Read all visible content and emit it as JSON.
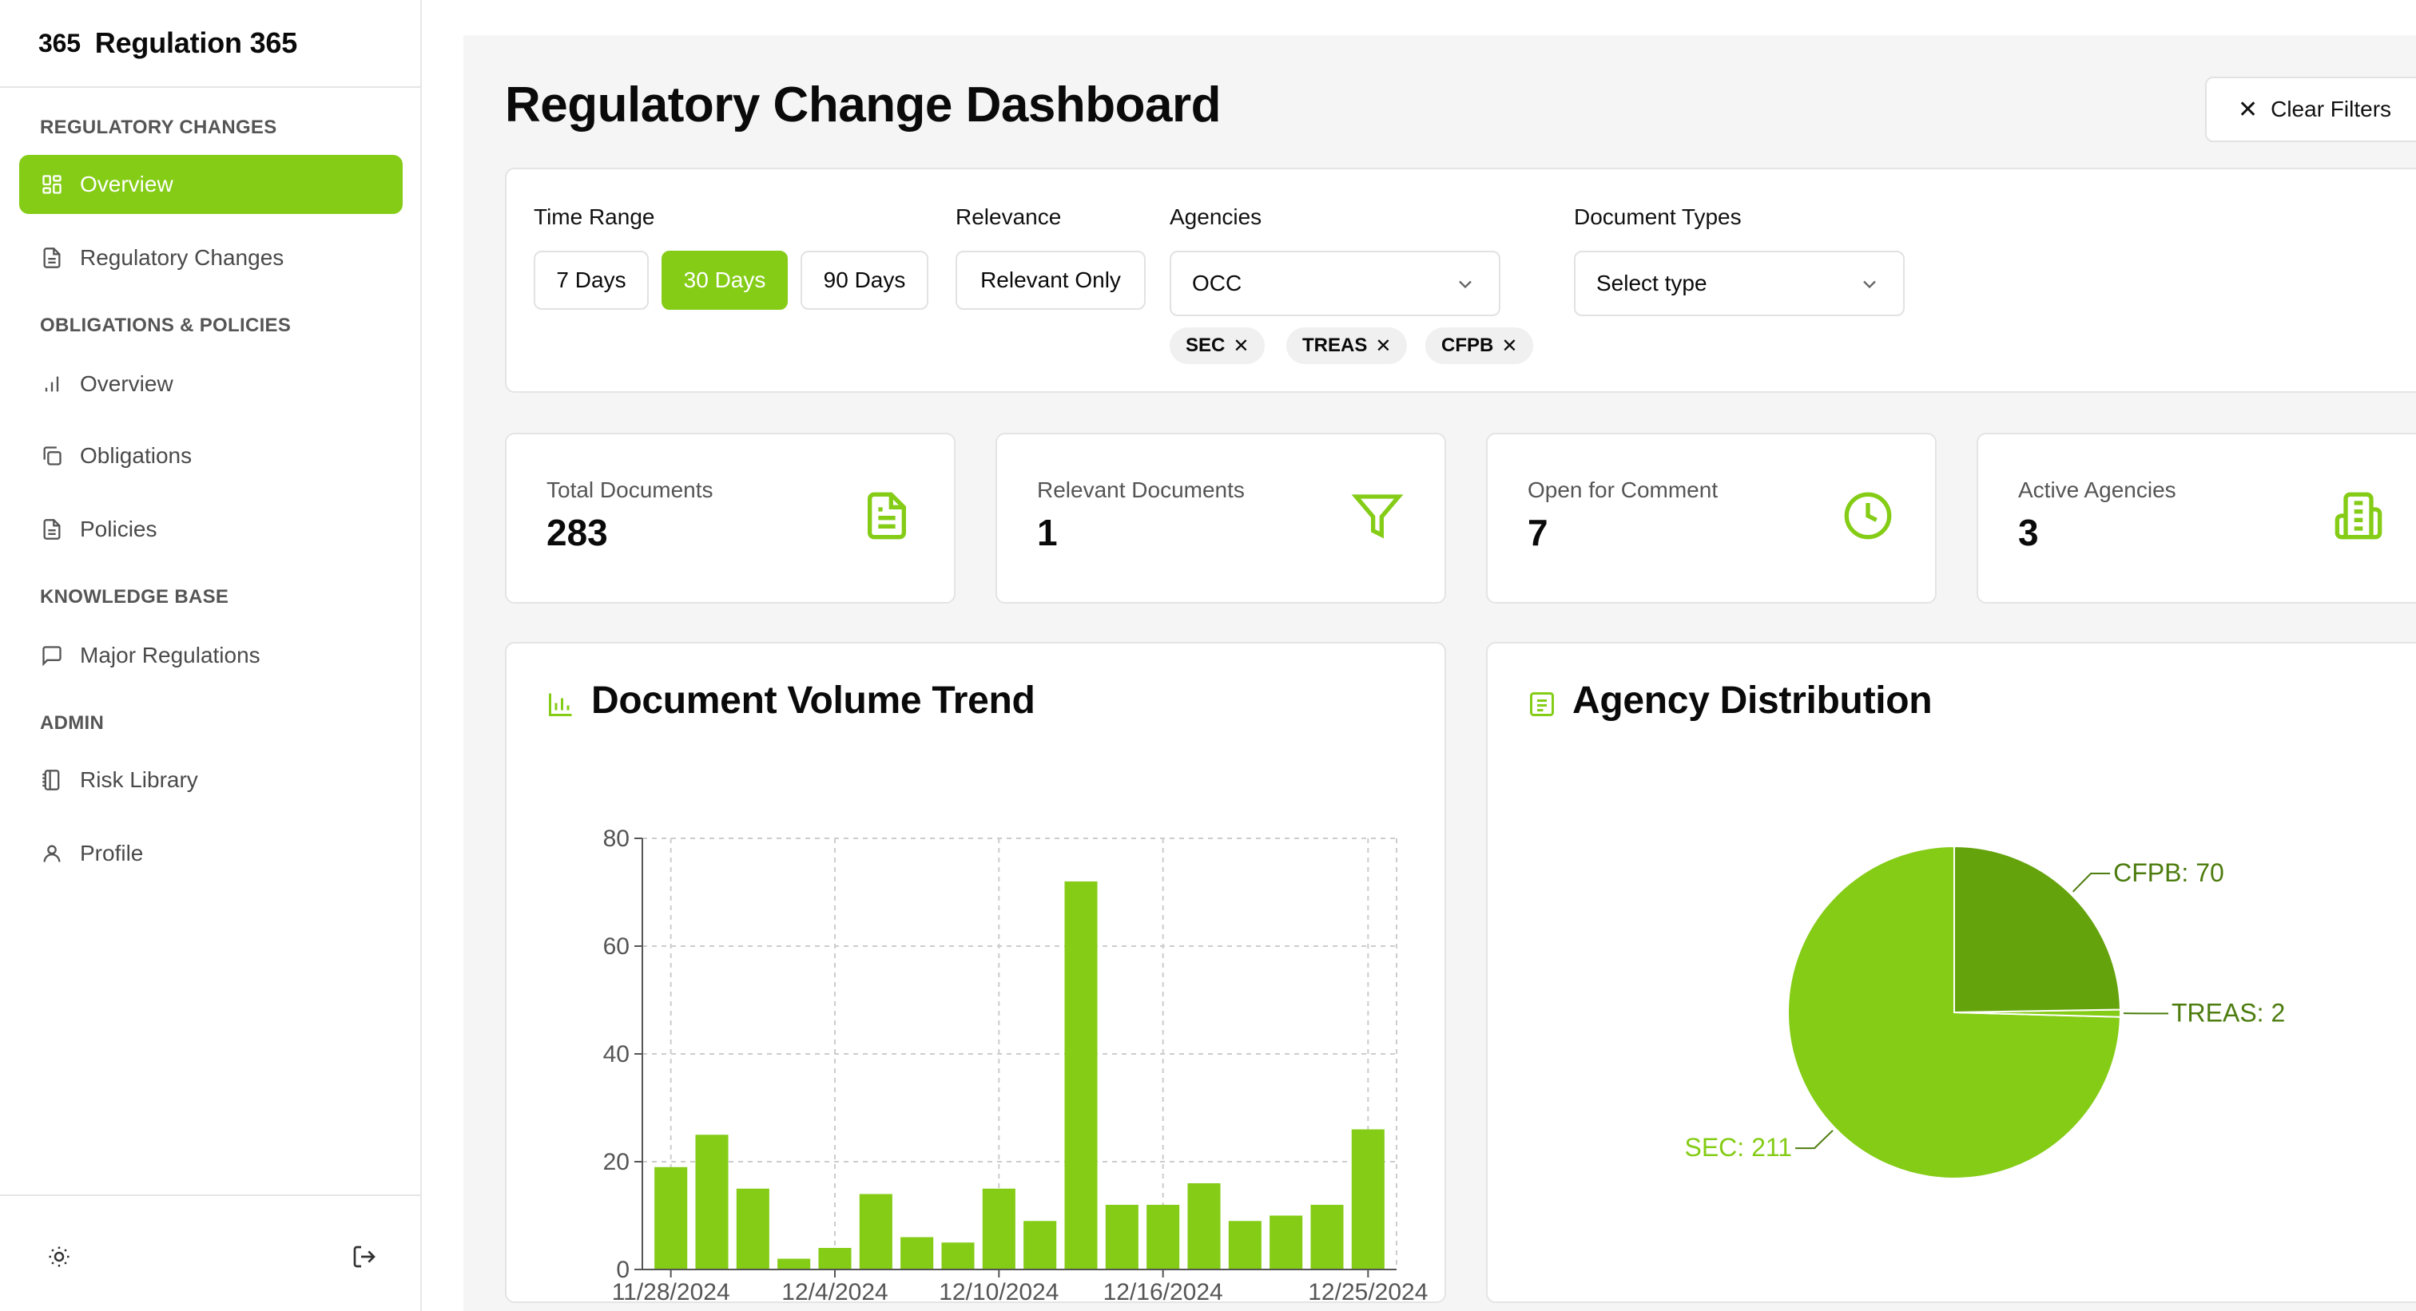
{
  "app": {
    "logo": "365",
    "name": "Regulation 365"
  },
  "sidebar": {
    "sections": [
      {
        "label": "REGULATORY CHANGES"
      },
      {
        "label": "OBLIGATIONS & POLICIES"
      },
      {
        "label": "KNOWLEDGE BASE"
      },
      {
        "label": "ADMIN"
      }
    ],
    "items": [
      {
        "label": "Overview",
        "icon": "grid-icon",
        "active": true
      },
      {
        "label": "Regulatory Changes",
        "icon": "document-icon"
      },
      {
        "label": "Overview",
        "icon": "bar-chart-icon"
      },
      {
        "label": "Obligations",
        "icon": "copy-icon"
      },
      {
        "label": "Policies",
        "icon": "file-text-icon"
      },
      {
        "label": "Major Regulations",
        "icon": "message-square-icon"
      },
      {
        "label": "Risk Library",
        "icon": "notebook-icon"
      },
      {
        "label": "Profile",
        "icon": "user-icon"
      }
    ],
    "footer": {
      "theme_icon": "sun-icon",
      "logout_icon": "log-out-icon"
    }
  },
  "header": {
    "title": "Regulatory Change Dashboard",
    "clear_filters": "Clear Filters"
  },
  "filters": {
    "time_range": {
      "label": "Time Range",
      "options": [
        "7 Days",
        "30 Days",
        "90 Days"
      ],
      "selected": "30 Days"
    },
    "relevance": {
      "label": "Relevance",
      "option": "Relevant Only"
    },
    "agencies": {
      "label": "Agencies",
      "value": "OCC",
      "chips": [
        "SEC",
        "TREAS",
        "CFPB"
      ]
    },
    "document_types": {
      "label": "Document Types",
      "placeholder": "Select type"
    }
  },
  "stats": [
    {
      "label": "Total Documents",
      "value": "283",
      "icon": "file-text-icon"
    },
    {
      "label": "Relevant Documents",
      "value": "1",
      "icon": "filter-icon"
    },
    {
      "label": "Open for Comment",
      "value": "7",
      "icon": "clock-icon"
    },
    {
      "label": "Active Agencies",
      "value": "3",
      "icon": "building-icon"
    }
  ],
  "colors": {
    "accent": "#84cc16",
    "accent_dark": "#65a30d",
    "label_green": "#4d7c0f"
  },
  "charts": {
    "volume_title": "Document Volume Trend",
    "agency_title": "Agency Distribution"
  },
  "chart_data": [
    {
      "type": "bar",
      "title": "Document Volume Trend",
      "xlabel": "",
      "ylabel": "",
      "ylim": [
        0,
        80
      ],
      "yticks": [
        0,
        20,
        40,
        60,
        80
      ],
      "xtick_labels": [
        "11/28/2024",
        "12/4/2024",
        "12/10/2024",
        "12/16/2024",
        "12/25/2024"
      ],
      "values": [
        19,
        25,
        15,
        2,
        4,
        14,
        6,
        5,
        15,
        9,
        72,
        12,
        12,
        16,
        9,
        10,
        12,
        26
      ],
      "grid": true
    },
    {
      "type": "pie",
      "title": "Agency Distribution",
      "slices": [
        {
          "label": "SEC",
          "value": 211,
          "text": "SEC: 211"
        },
        {
          "label": "TREAS",
          "value": 2,
          "text": "TREAS: 2"
        },
        {
          "label": "CFPB",
          "value": 70,
          "text": "CFPB: 70"
        }
      ]
    }
  ]
}
